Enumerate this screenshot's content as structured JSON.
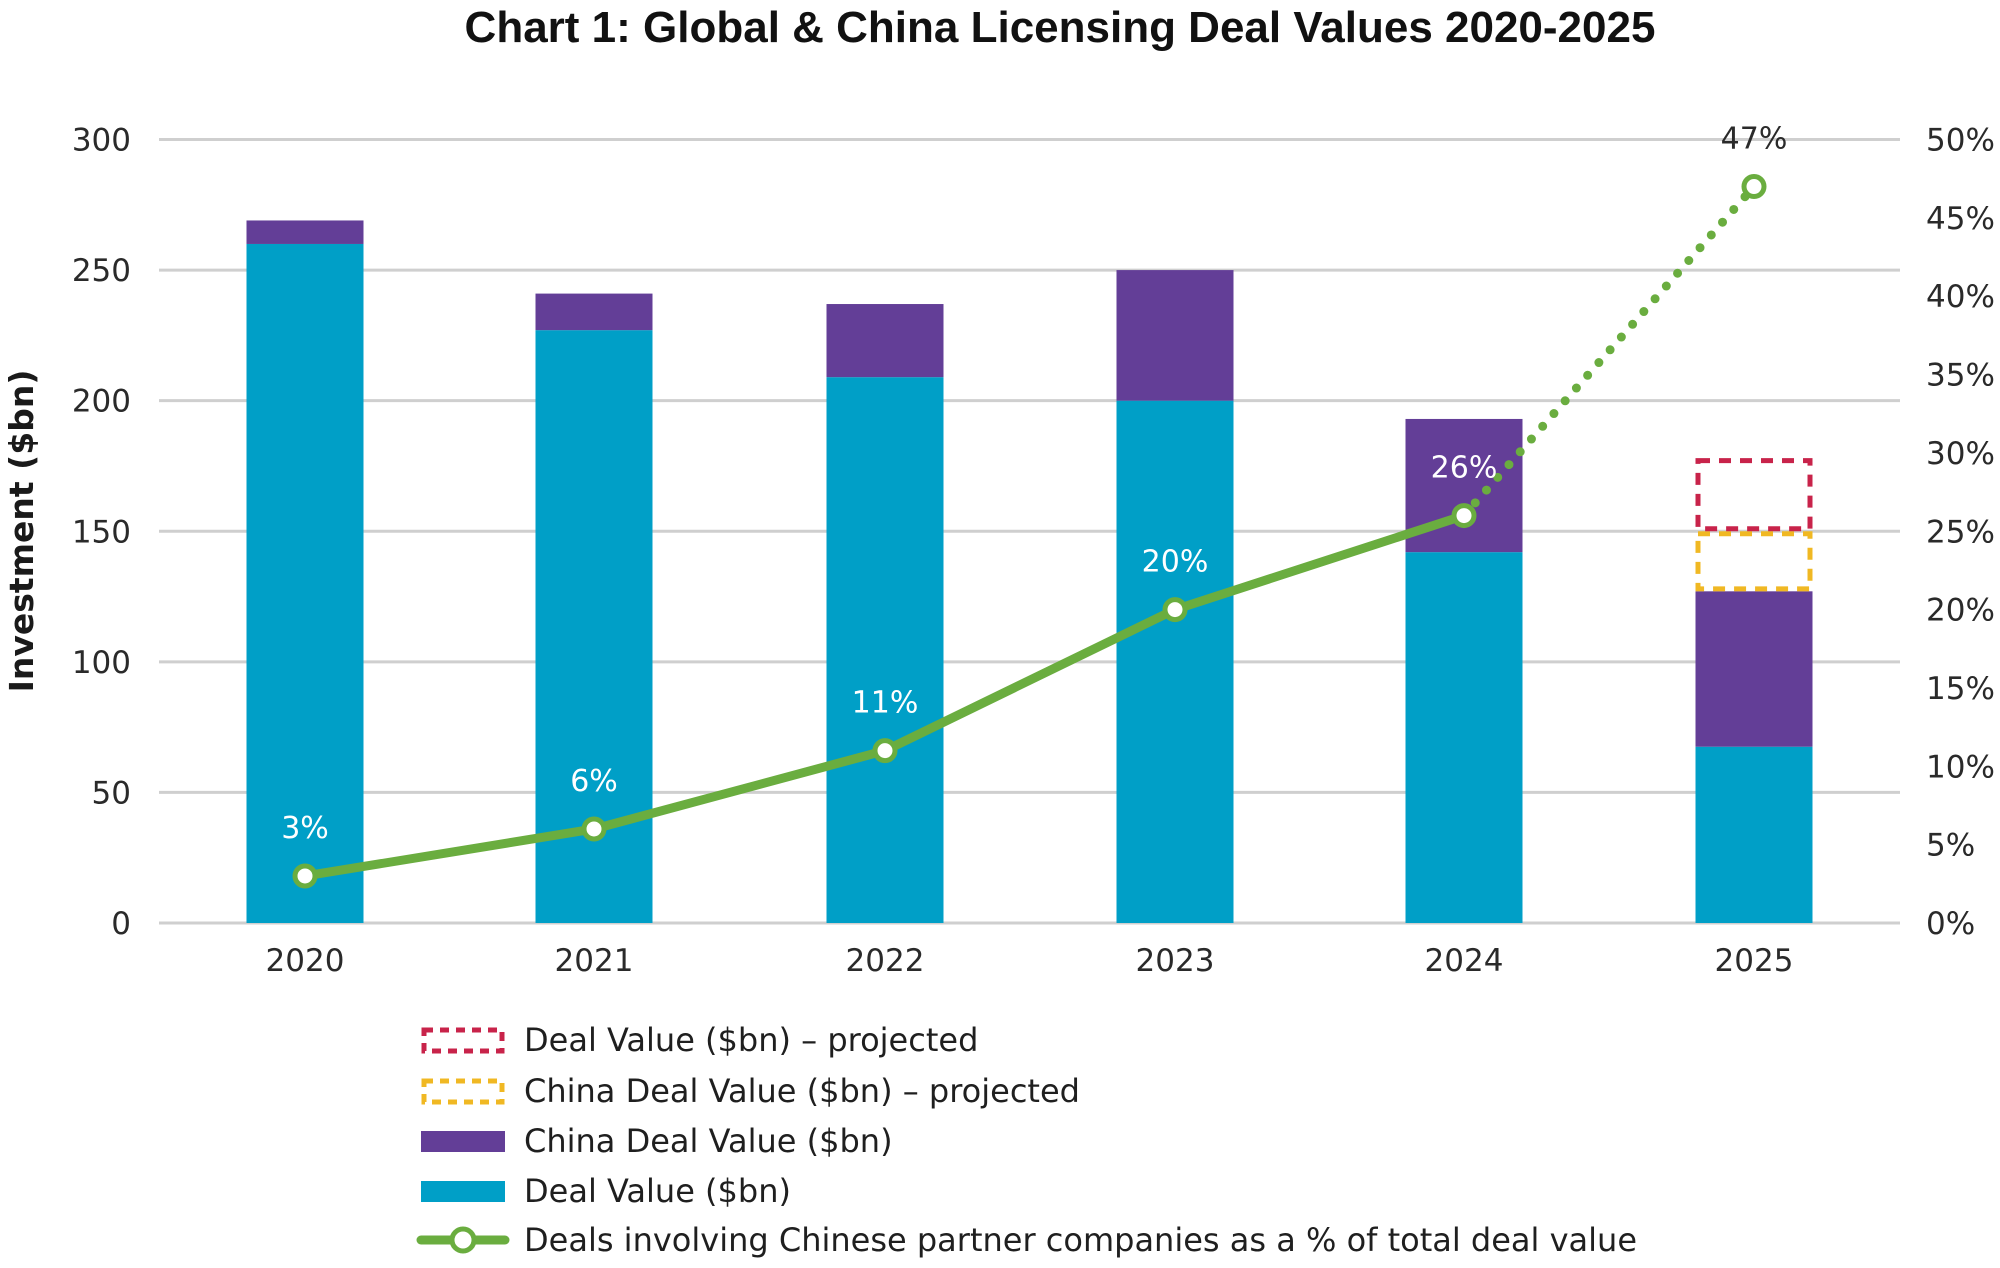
{
  "chart_data": {
    "type": "bar",
    "subtype": "stacked-bar-with-line",
    "title": "Chart 1: Global & China Licensing Deal Values 2020-2025",
    "xlabel": "",
    "ylabel": "Investment ($bn)",
    "ylabel_right": "",
    "ylim": [
      0,
      300
    ],
    "yticks": [
      0,
      50,
      100,
      150,
      200,
      250,
      300
    ],
    "ylim_right": [
      0,
      50
    ],
    "yticks_right": [
      "0%",
      "5%",
      "10%",
      "15%",
      "20%",
      "25%",
      "30%",
      "35%",
      "40%",
      "45%",
      "50%"
    ],
    "grid": true,
    "categories": [
      "2020",
      "2021",
      "2022",
      "2023",
      "2024",
      "2025"
    ],
    "series": [
      {
        "name": "Deal Value ($bn)",
        "kind": "bar",
        "color": "#009fc7",
        "values": [
          260,
          227,
          209,
          200,
          142,
          67.5
        ]
      },
      {
        "name": "China Deal Value ($bn)",
        "kind": "bar",
        "color": "#633e97",
        "values": [
          9,
          14,
          28,
          50,
          51,
          59.5
        ]
      },
      {
        "name": "China Deal Value ($bn) – projected",
        "kind": "bar-outline-dashed",
        "color": "#f0b823",
        "values": [
          null,
          null,
          null,
          null,
          null,
          23
        ]
      },
      {
        "name": "Deal Value ($bn) – projected",
        "kind": "bar-outline-dashed",
        "color": "#c8234a",
        "values": [
          null,
          null,
          null,
          null,
          null,
          28
        ]
      },
      {
        "name": "Deals involving Chinese partner companies as a % of total deal value",
        "kind": "line",
        "axis": "right",
        "color": "#6aad3f",
        "values": [
          3,
          6,
          11,
          20,
          26,
          47
        ],
        "labels": [
          "3%",
          "6%",
          "11%",
          "20%",
          "26%",
          "47%"
        ],
        "projected_from_index": 4
      }
    ],
    "legend": {
      "placement": "bottom",
      "entries": [
        {
          "label": "Deal Value ($bn) – projected",
          "swatch": "dashed-box",
          "color": "#c8234a"
        },
        {
          "label": "China Deal Value ($bn) – projected",
          "swatch": "dashed-box",
          "color": "#f0b823"
        },
        {
          "label": "China Deal Value ($bn)",
          "swatch": "solid-box",
          "color": "#633e97"
        },
        {
          "label": "Deal Value ($bn)",
          "swatch": "solid-box",
          "color": "#009fc7"
        },
        {
          "label": "Deals involving Chinese partner companies as a % of total deal value",
          "swatch": "line-marker",
          "color": "#6aad3f"
        }
      ]
    }
  },
  "colors": {
    "grid": "#cfcfcf",
    "line": "#6aad3f"
  }
}
